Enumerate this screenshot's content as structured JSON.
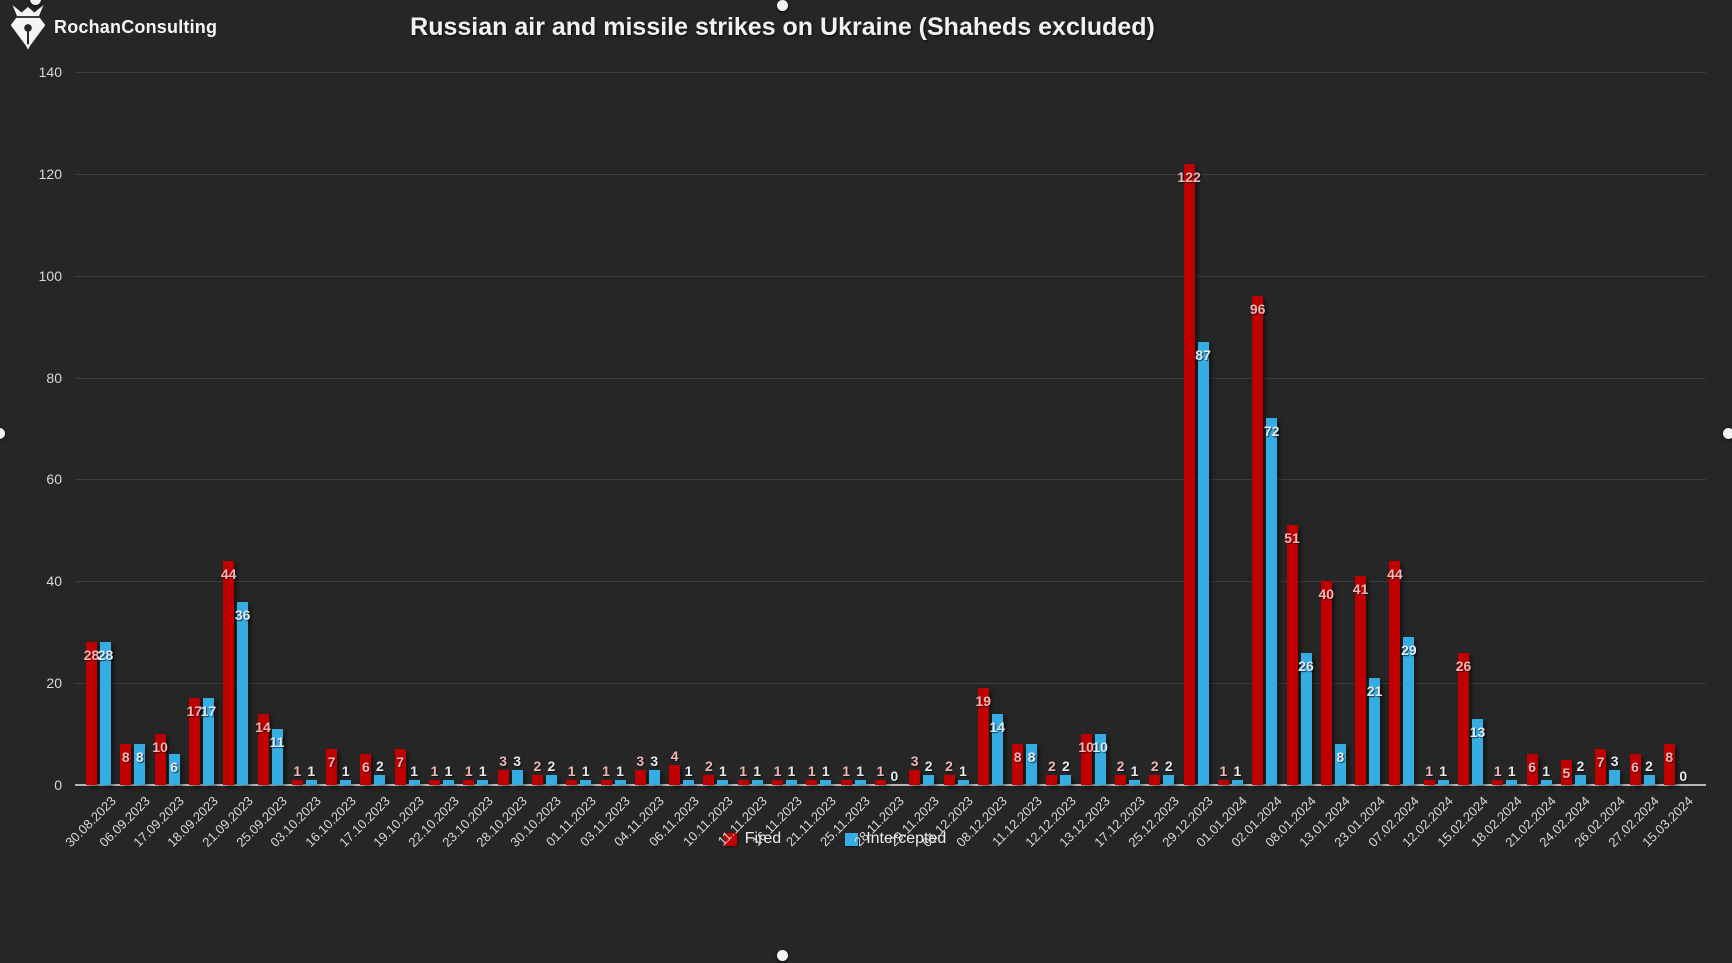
{
  "logo": {
    "name": "RochanConsulting",
    "icon": "pen-nib-icon"
  },
  "title": "Russian air and missile strikes on Ukraine (Shaheds excluded)",
  "colors": {
    "background": "#262626",
    "bar_fired": "#c00000",
    "bar_intercepted": "#35ace2",
    "label_fired": "#f0b6b6",
    "label_intercepted": "#e2eaf1",
    "axis_text": "#d9d9d9",
    "gridline": "#3c3c3c",
    "baseline": "#b5b5b5"
  },
  "chart_data": {
    "type": "bar",
    "title": "Russian air and missile strikes on Ukraine (Shaheds excluded)",
    "xlabel": "",
    "ylabel": "",
    "ylim": [
      0,
      140
    ],
    "yticks": [
      0,
      20,
      40,
      60,
      80,
      100,
      120,
      140
    ],
    "grid": true,
    "legend_position": "bottom",
    "categories": [
      "30.08.2023",
      "06.09.2023",
      "17.09.2023",
      "18.09.2023",
      "21.09.2023",
      "25.09.2023",
      "03.10.2023",
      "16.10.2023",
      "17.10.2023",
      "19.10.2023",
      "22.10.2023",
      "23.10.2023",
      "28.10.2023",
      "30.10.2023",
      "01.11.2023",
      "03.11.2023",
      "04.11.2023",
      "06.11.2023",
      "10.11.2023",
      "11.11.2023",
      "16.11.2023",
      "21.11.2023",
      "25.11.2023",
      "28.11.2023",
      "29.11.2023",
      "01.12.2023",
      "08.12.2023",
      "11.12.2023",
      "12.12.2023",
      "13.12.2023",
      "17.12.2023",
      "25.12.2023",
      "29.12.2023",
      "01.01.2024",
      "02.01.2024",
      "08.01.2024",
      "13.01.2024",
      "23.01.2024",
      "07.02.2024",
      "12.02.2024",
      "15.02.2024",
      "18.02.2024",
      "21.02.2024",
      "24.02.2024",
      "26.02.2024",
      "27.02.2024",
      "15.03.2024"
    ],
    "series": [
      {
        "name": "Fired",
        "color": "#c00000",
        "values": [
          28,
          8,
          10,
          17,
          44,
          14,
          1,
          7,
          6,
          7,
          1,
          1,
          3,
          2,
          1,
          1,
          3,
          4,
          2,
          1,
          1,
          1,
          1,
          1,
          3,
          2,
          19,
          8,
          2,
          10,
          2,
          2,
          122,
          1,
          96,
          51,
          40,
          41,
          44,
          1,
          26,
          1,
          6,
          5,
          7,
          6,
          8
        ]
      },
      {
        "name": "Intercepted",
        "color": "#35ace2",
        "values": [
          28,
          8,
          6,
          17,
          36,
          11,
          1,
          1,
          2,
          1,
          1,
          1,
          3,
          2,
          1,
          1,
          3,
          1,
          1,
          1,
          1,
          1,
          1,
          0,
          2,
          1,
          14,
          8,
          2,
          10,
          1,
          2,
          87,
          1,
          72,
          26,
          8,
          21,
          29,
          1,
          13,
          1,
          1,
          2,
          3,
          2,
          0
        ]
      }
    ]
  }
}
